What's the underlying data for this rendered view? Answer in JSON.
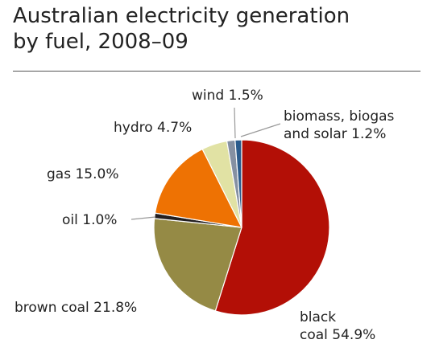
{
  "chart_data": {
    "type": "pie",
    "title_lines": [
      "Australian electricity generation",
      "by fuel, 2008–09"
    ],
    "slices": [
      {
        "label_lines": [
          "black",
          "coal 54.9%"
        ],
        "value": 54.9,
        "color": "#B30F06"
      },
      {
        "label_lines": [
          "brown coal 21.8%"
        ],
        "value": 21.8,
        "color": "#958A45"
      },
      {
        "label_lines": [
          "oil 1.0%"
        ],
        "value": 1.0,
        "color": "#231F20"
      },
      {
        "label_lines": [
          "gas 15.0%"
        ],
        "value": 15.0,
        "color": "#EE7203"
      },
      {
        "label_lines": [
          "hydro 4.7%"
        ],
        "value": 4.7,
        "color": "#E1E2A4"
      },
      {
        "label_lines": [
          "wind 1.5%"
        ],
        "value": 1.5,
        "color": "#8590A2"
      },
      {
        "label_lines": [
          "biomass, biogas",
          "and solar 1.2%"
        ],
        "value": 1.2,
        "color": "#2A5B8C"
      }
    ],
    "start": "12 o'clock",
    "direction": "clockwise",
    "legend": "none"
  }
}
